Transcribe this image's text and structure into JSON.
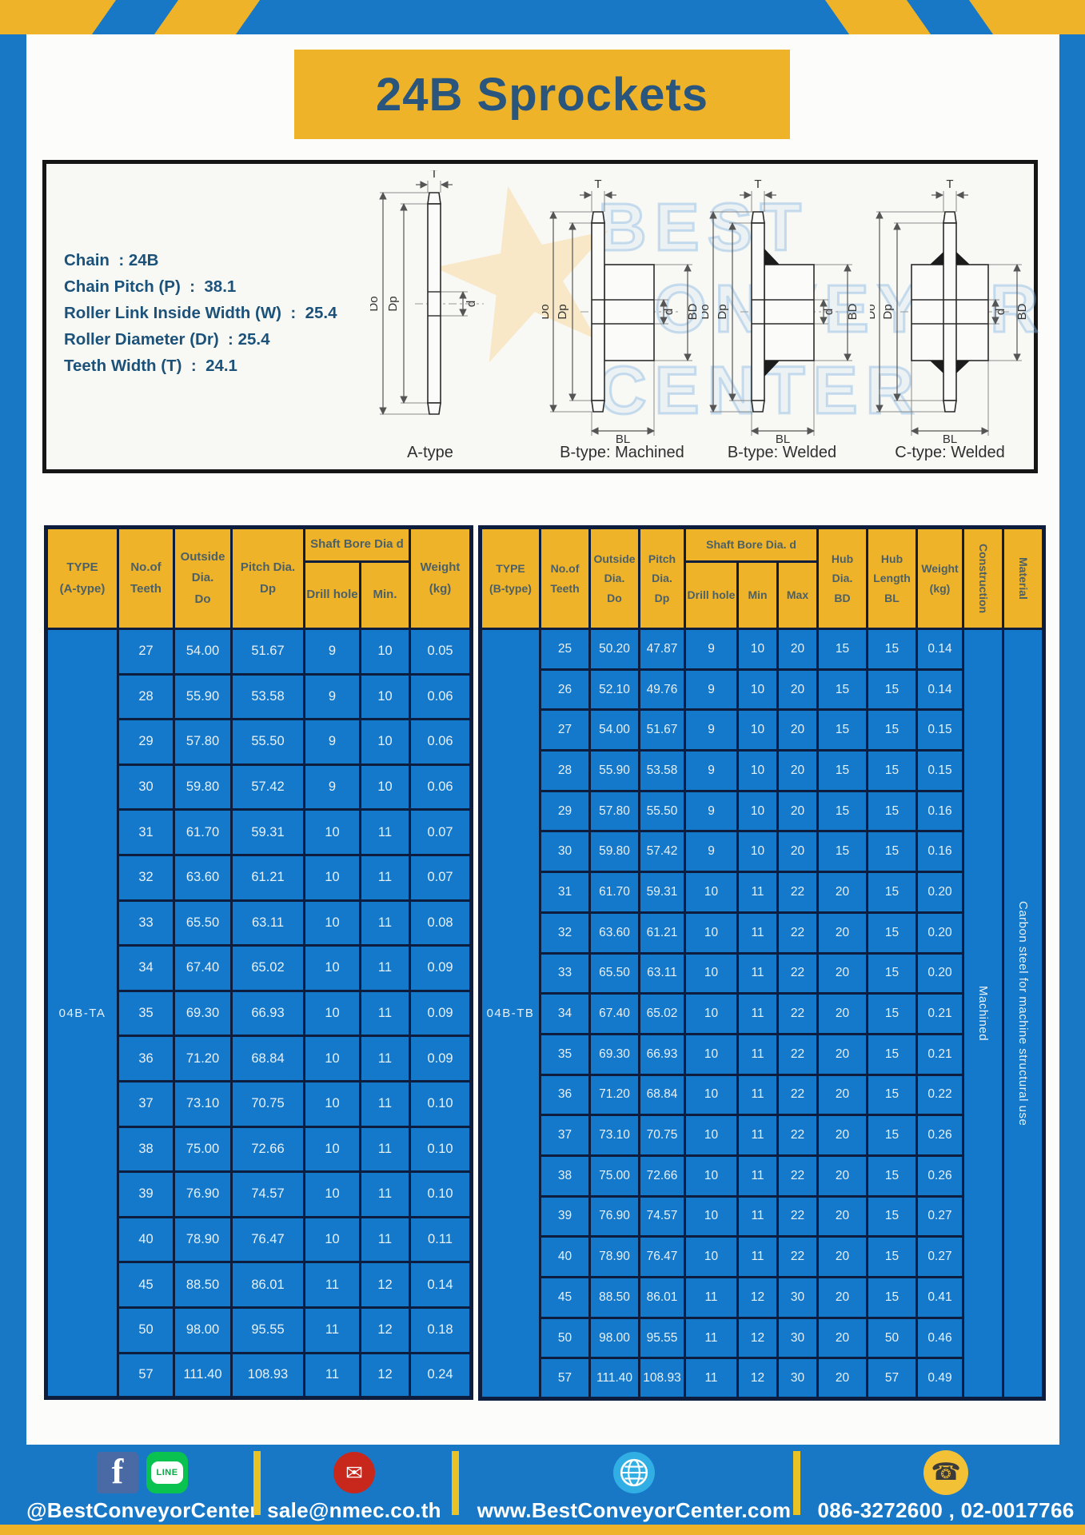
{
  "header": {
    "title": "24B Sprockets"
  },
  "specs": {
    "lines": [
      "Chain  : 24B",
      "Chain Pitch (P)  :  38.1",
      "Roller Link Inside Width (W)  :  25.4",
      "Roller Diameter (Dr)  : 25.4",
      "Teeth Width (T)  :  24.1"
    ]
  },
  "diagram": {
    "captions": [
      "A-type",
      "B-type: Machined",
      "B-type: Welded",
      "C-type: Welded"
    ],
    "dim_labels": {
      "T": "T",
      "Do": "Do",
      "Dp": "Dp",
      "d": "d",
      "BD": "BD",
      "BL": "BL"
    },
    "watermark_lines": "BEST\nCONVEYOR\nCENTER",
    "watermark_glyph": "★"
  },
  "table_a": {
    "type_label": "04B-TA",
    "headers": {
      "type": "TYPE\n(A-type)",
      "teeth": "No.of\nTeeth",
      "outside": "Outside\nDia.\nDo",
      "pitch": "Pitch Dia.\nDp",
      "shaft_bore": "Shaft Bore Dia d",
      "drill": "Drill hole",
      "min": "Min.",
      "weight": "Weight\n(kg)"
    },
    "rows": [
      [
        "27",
        "54.00",
        "51.67",
        "9",
        "10",
        "0.05"
      ],
      [
        "28",
        "55.90",
        "53.58",
        "9",
        "10",
        "0.06"
      ],
      [
        "29",
        "57.80",
        "55.50",
        "9",
        "10",
        "0.06"
      ],
      [
        "30",
        "59.80",
        "57.42",
        "9",
        "10",
        "0.06"
      ],
      [
        "31",
        "61.70",
        "59.31",
        "10",
        "11",
        "0.07"
      ],
      [
        "32",
        "63.60",
        "61.21",
        "10",
        "11",
        "0.07"
      ],
      [
        "33",
        "65.50",
        "63.11",
        "10",
        "11",
        "0.08"
      ],
      [
        "34",
        "67.40",
        "65.02",
        "10",
        "11",
        "0.09"
      ],
      [
        "35",
        "69.30",
        "66.93",
        "10",
        "11",
        "0.09"
      ],
      [
        "36",
        "71.20",
        "68.84",
        "10",
        "11",
        "0.09"
      ],
      [
        "37",
        "73.10",
        "70.75",
        "10",
        "11",
        "0.10"
      ],
      [
        "38",
        "75.00",
        "72.66",
        "10",
        "11",
        "0.10"
      ],
      [
        "39",
        "76.90",
        "74.57",
        "10",
        "11",
        "0.10"
      ],
      [
        "40",
        "78.90",
        "76.47",
        "10",
        "11",
        "0.11"
      ],
      [
        "45",
        "88.50",
        "86.01",
        "11",
        "12",
        "0.14"
      ],
      [
        "50",
        "98.00",
        "95.55",
        "11",
        "12",
        "0.18"
      ],
      [
        "57",
        "111.40",
        "108.93",
        "11",
        "12",
        "0.24"
      ]
    ]
  },
  "table_b": {
    "type_label": "04B-TB",
    "vertical_cells": [
      "Machined",
      "Carbon steel for machine structural use"
    ],
    "headers": {
      "type": "TYPE\n(B-type)",
      "teeth": "No.of\nTeeth",
      "outside": "Outside\nDia.\nDo",
      "pitch": "Pitch\nDia.\nDp",
      "shaft_bore": "Shaft Bore Dia. d",
      "drill": "Drill hole",
      "min": "Min",
      "max": "Max",
      "hub_dia": "Hub\nDia.\nBD",
      "hub_len": "Hub\nLength\nBL",
      "weight": "Weight\n(kg)",
      "construction": "Construction",
      "material": "Material"
    },
    "rows": [
      [
        "25",
        "50.20",
        "47.87",
        "9",
        "10",
        "20",
        "15",
        "15",
        "0.14"
      ],
      [
        "26",
        "52.10",
        "49.76",
        "9",
        "10",
        "20",
        "15",
        "15",
        "0.14"
      ],
      [
        "27",
        "54.00",
        "51.67",
        "9",
        "10",
        "20",
        "15",
        "15",
        "0.15"
      ],
      [
        "28",
        "55.90",
        "53.58",
        "9",
        "10",
        "20",
        "15",
        "15",
        "0.15"
      ],
      [
        "29",
        "57.80",
        "55.50",
        "9",
        "10",
        "20",
        "15",
        "15",
        "0.16"
      ],
      [
        "30",
        "59.80",
        "57.42",
        "9",
        "10",
        "20",
        "15",
        "15",
        "0.16"
      ],
      [
        "31",
        "61.70",
        "59.31",
        "10",
        "11",
        "22",
        "20",
        "15",
        "0.20"
      ],
      [
        "32",
        "63.60",
        "61.21",
        "10",
        "11",
        "22",
        "20",
        "15",
        "0.20"
      ],
      [
        "33",
        "65.50",
        "63.11",
        "10",
        "11",
        "22",
        "20",
        "15",
        "0.20"
      ],
      [
        "34",
        "67.40",
        "65.02",
        "10",
        "11",
        "22",
        "20",
        "15",
        "0.21"
      ],
      [
        "35",
        "69.30",
        "66.93",
        "10",
        "11",
        "22",
        "20",
        "15",
        "0.21"
      ],
      [
        "36",
        "71.20",
        "68.84",
        "10",
        "11",
        "22",
        "20",
        "15",
        "0.22"
      ],
      [
        "37",
        "73.10",
        "70.75",
        "10",
        "11",
        "22",
        "20",
        "15",
        "0.26"
      ],
      [
        "38",
        "75.00",
        "72.66",
        "10",
        "11",
        "22",
        "20",
        "15",
        "0.26"
      ],
      [
        "39",
        "76.90",
        "74.57",
        "10",
        "11",
        "22",
        "20",
        "15",
        "0.27"
      ],
      [
        "40",
        "78.90",
        "76.47",
        "10",
        "11",
        "22",
        "20",
        "15",
        "0.27"
      ],
      [
        "45",
        "88.50",
        "86.01",
        "11",
        "12",
        "30",
        "20",
        "15",
        "0.41"
      ],
      [
        "50",
        "98.00",
        "95.55",
        "11",
        "12",
        "30",
        "20",
        "50",
        "0.46"
      ],
      [
        "57",
        "111.40",
        "108.93",
        "11",
        "12",
        "30",
        "20",
        "57",
        "0.49"
      ]
    ]
  },
  "footer": {
    "social_handle": "@BestConveyorCenter",
    "line_label": "LINE",
    "facebook_glyph": "f",
    "email_glyph": "✉",
    "phone_glyph": "☎",
    "email": "sale@nmec.co.th",
    "website": "www.BestConveyorCenter.com",
    "phones": "086-3272600 , 02-0017766"
  },
  "colors": {
    "frame_blue": "#1878c6",
    "accent_yellow": "#efb329",
    "cell_blue": "#1478cb",
    "border_navy": "#0c1d3d",
    "title_text": "#2a567d",
    "header_text": "#4c6067"
  }
}
